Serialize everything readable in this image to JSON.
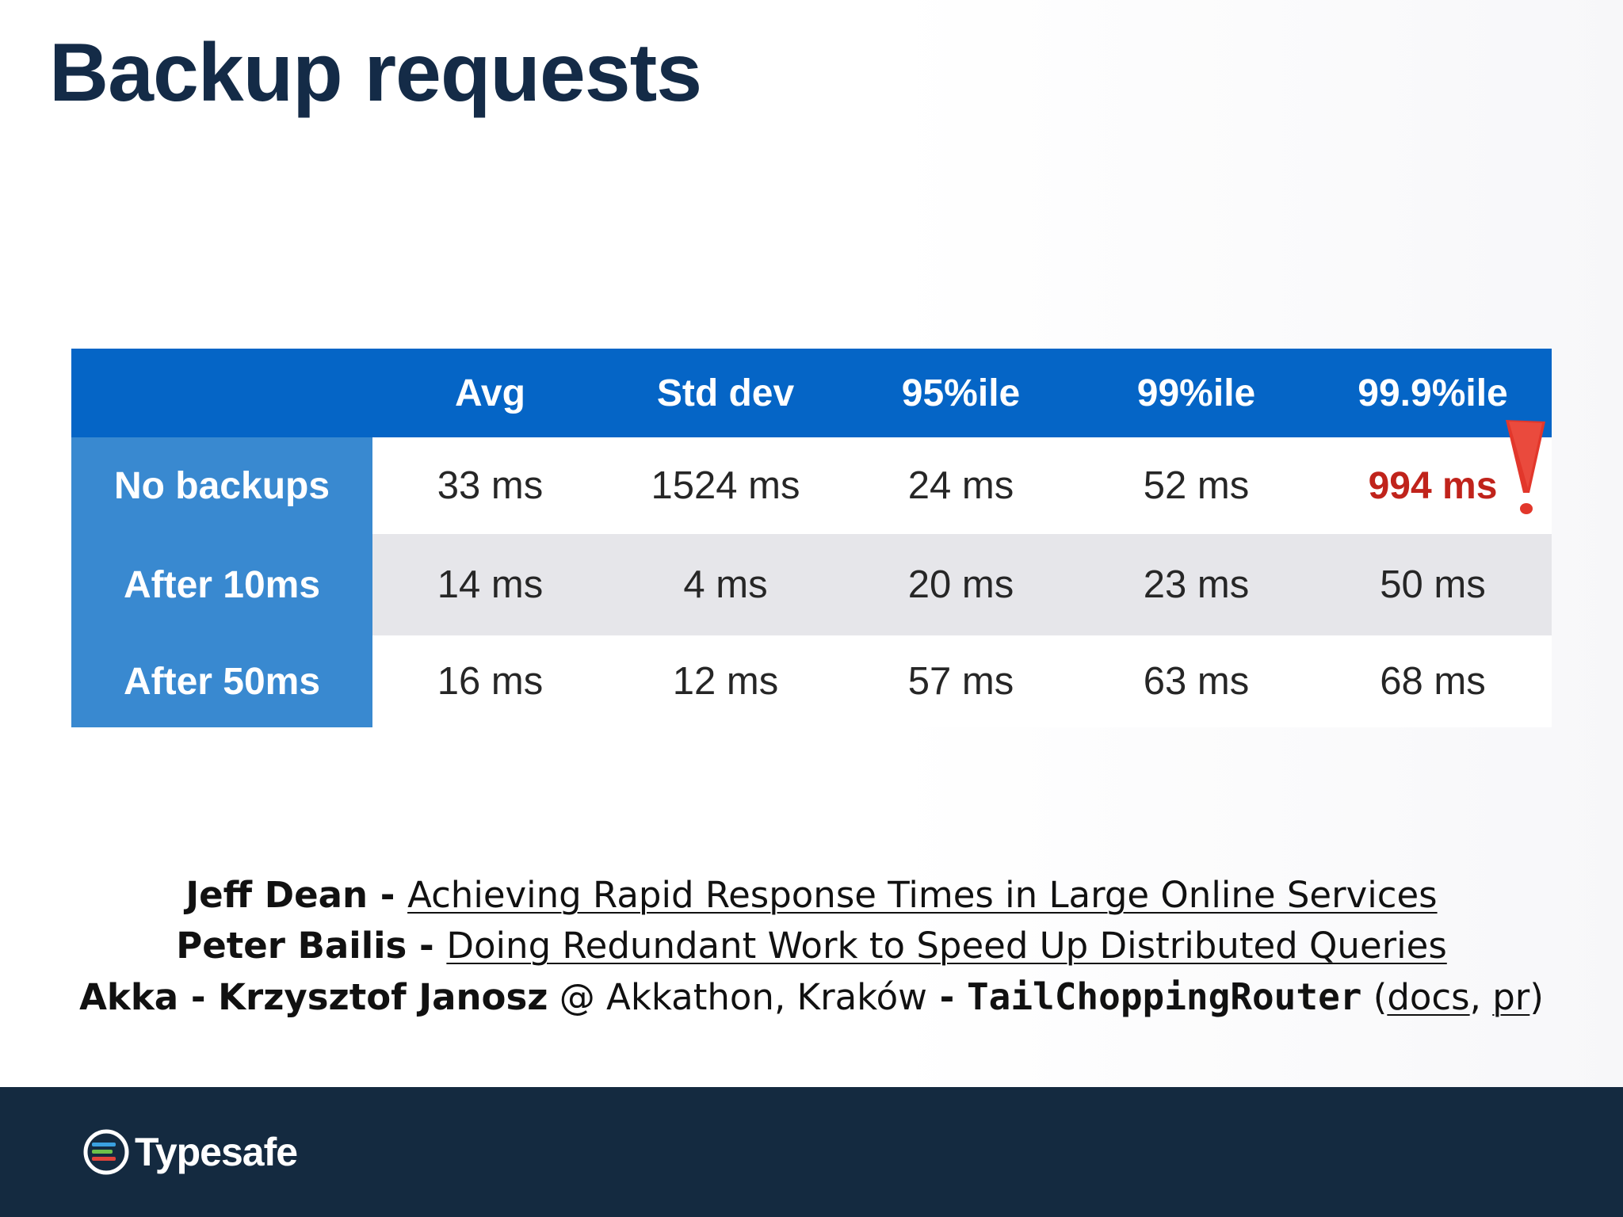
{
  "slide": {
    "title": "Backup requests"
  },
  "table": {
    "columns": [
      "",
      "Avg",
      "Std dev",
      "95%ile",
      "99%ile",
      "99.9%ile"
    ],
    "rows": [
      {
        "label": "No backups",
        "values": [
          "33 ms",
          "1524 ms",
          "24 ms",
          "52 ms",
          "994 ms"
        ],
        "highlight_index": 4
      },
      {
        "label": "After 10ms",
        "values": [
          "14 ms",
          "4 ms",
          "20 ms",
          "23 ms",
          "50 ms"
        ]
      },
      {
        "label": "After 50ms",
        "values": [
          "16 ms",
          "12 ms",
          "57 ms",
          "63 ms",
          "68 ms"
        ]
      }
    ],
    "colors": {
      "header_bg": "#0565c6",
      "rowhead_bg": "#3989d0",
      "stripe_bg": "#e6e6ea",
      "highlight_text": "#c0231b"
    },
    "annotation_icon": "exclamation-mark-icon"
  },
  "references": [
    {
      "name": "Jeff Dean",
      "sep": " - ",
      "link": "Achieving Rapid Response Times in Large Online Services"
    },
    {
      "name": "Peter Bailis",
      "sep": " - ",
      "link": "Doing Redundant Work to Speed Up Distributed Queries"
    },
    {
      "name": "Akka - Krzysztof Janosz",
      "at": " @ ",
      "event": "Akkathon, Kraków",
      "sep": " - ",
      "code": "TailChoppingRouter",
      "open_paren": " (",
      "docs_link": "docs",
      "comma": ", ",
      "pr_link": "pr",
      "close_paren": ")"
    }
  ],
  "footer": {
    "brand": "Typesafe",
    "brand_icon": "typesafe-logo-icon",
    "background": "#142a40"
  }
}
